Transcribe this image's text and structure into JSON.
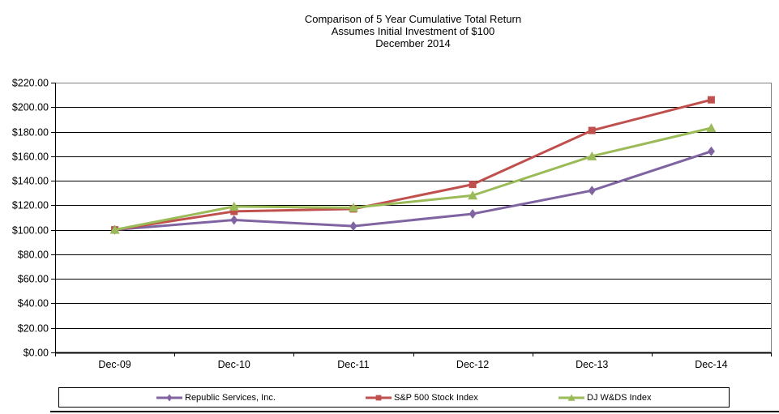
{
  "title": {
    "line1": "Comparison of 5 Year Cumulative Total Return",
    "line2": "Assumes Initial Investment of $100",
    "line3": "December 2014"
  },
  "chart_data": {
    "type": "line",
    "categories": [
      "Dec-09",
      "Dec-10",
      "Dec-11",
      "Dec-12",
      "Dec-13",
      "Dec-14"
    ],
    "series": [
      {
        "name": "Republic Services, Inc.",
        "color": "#8064A2",
        "marker": "diamond",
        "values": [
          100,
          108,
          103,
          113,
          132,
          164
        ]
      },
      {
        "name": "S&P 500 Stock Index",
        "color": "#C0504D",
        "marker": "square",
        "values": [
          100,
          115,
          117,
          137,
          181,
          206
        ]
      },
      {
        "name": "DJ W&DS Index",
        "color": "#9BBB59",
        "marker": "triangle",
        "values": [
          100,
          119,
          118,
          128,
          160,
          183
        ]
      }
    ],
    "ylim": [
      0,
      220
    ],
    "ytick_step": 20,
    "ytick_labels": [
      "$0.00",
      "$20.00",
      "$40.00",
      "$60.00",
      "$80.00",
      "$100.00",
      "$120.00",
      "$140.00",
      "$160.00",
      "$180.00",
      "$200.00",
      "$220.00"
    ],
    "grid": "horizontal",
    "legend_position": "bottom",
    "colors": {
      "gridline": "#000000",
      "plot_border": "#808080",
      "axis": "#000000",
      "background": "#ffffff"
    }
  }
}
